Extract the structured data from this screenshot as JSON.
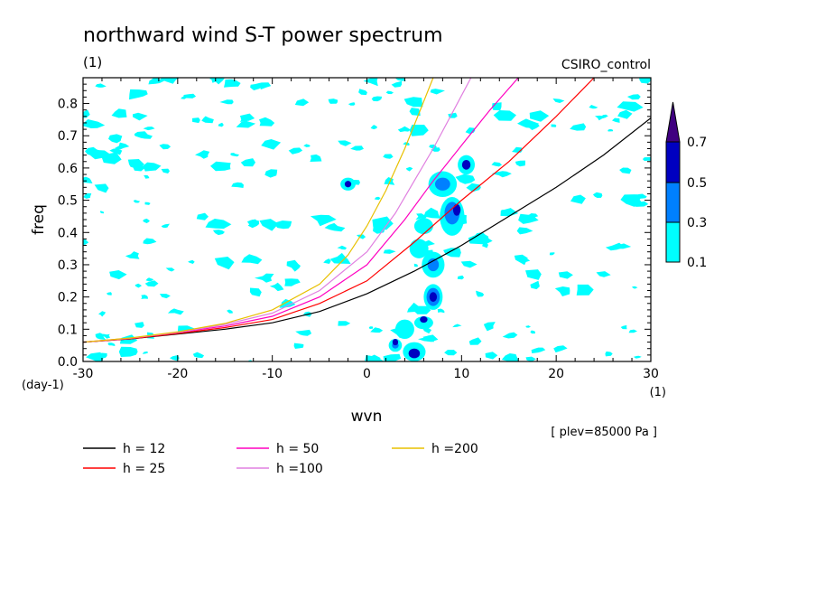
{
  "chart_data": {
    "type": "heatmap",
    "title": "northward wind S-T power spectrum",
    "subtitle_left": "(1)",
    "subtitle_right": "CSIRO_control",
    "xlabel": "wvn",
    "ylabel": "freq",
    "x_unit_label": "(1)",
    "y_unit_label": "(day-1)",
    "annotation": "[ plev=85000 Pa ]",
    "xlim": [
      -30,
      30
    ],
    "ylim": [
      0,
      0.88
    ],
    "x_ticks": [
      -30,
      -20,
      -10,
      0,
      10,
      20,
      30
    ],
    "x_tick_labels": [
      "-30",
      "-20",
      "-10",
      "0",
      "10",
      "20",
      "30"
    ],
    "y_ticks": [
      0.0,
      0.1,
      0.2,
      0.3,
      0.4,
      0.5,
      0.6,
      0.7,
      0.8
    ],
    "y_tick_labels": [
      "0.0",
      "0.1",
      "0.2",
      "0.3",
      "0.4",
      "0.5",
      "0.6",
      "0.7",
      "0.8"
    ],
    "colorbar": {
      "levels": [
        0.1,
        0.3,
        0.5,
        0.7
      ],
      "level_labels": [
        "0.1",
        "0.3",
        "0.5",
        "0.7"
      ],
      "colors": [
        "#00ffff",
        "#0080ff",
        "#0000c0",
        "#400080"
      ]
    },
    "dispersion_curves": [
      {
        "label": "h = 12",
        "color": "#000000",
        "points": [
          [
            -30,
            0.06
          ],
          [
            -25,
            0.07
          ],
          [
            -20,
            0.085
          ],
          [
            -15,
            0.1
          ],
          [
            -10,
            0.12
          ],
          [
            -5,
            0.155
          ],
          [
            0,
            0.21
          ],
          [
            5,
            0.28
          ],
          [
            10,
            0.36
          ],
          [
            15,
            0.45
          ],
          [
            20,
            0.54
          ],
          [
            25,
            0.64
          ],
          [
            30,
            0.755
          ]
        ]
      },
      {
        "label": "h = 25",
        "color": "#ff0000",
        "points": [
          [
            -30,
            0.06
          ],
          [
            -25,
            0.07
          ],
          [
            -20,
            0.087
          ],
          [
            -15,
            0.105
          ],
          [
            -10,
            0.13
          ],
          [
            -5,
            0.18
          ],
          [
            0,
            0.25
          ],
          [
            5,
            0.37
          ],
          [
            10,
            0.5
          ],
          [
            15,
            0.62
          ],
          [
            20,
            0.76
          ],
          [
            24,
            0.88
          ]
        ]
      },
      {
        "label": "h = 50",
        "color": "#ff00c0",
        "points": [
          [
            -30,
            0.06
          ],
          [
            -25,
            0.072
          ],
          [
            -20,
            0.09
          ],
          [
            -15,
            0.11
          ],
          [
            -10,
            0.14
          ],
          [
            -5,
            0.2
          ],
          [
            0,
            0.3
          ],
          [
            4,
            0.44
          ],
          [
            7,
            0.56
          ],
          [
            10,
            0.67
          ],
          [
            13,
            0.78
          ],
          [
            16,
            0.88
          ]
        ]
      },
      {
        "label": "h =100",
        "color": "#e080e0",
        "points": [
          [
            -30,
            0.06
          ],
          [
            -25,
            0.072
          ],
          [
            -20,
            0.09
          ],
          [
            -15,
            0.115
          ],
          [
            -10,
            0.15
          ],
          [
            -5,
            0.22
          ],
          [
            0,
            0.34
          ],
          [
            3,
            0.46
          ],
          [
            5,
            0.56
          ],
          [
            7,
            0.66
          ],
          [
            9,
            0.77
          ],
          [
            11,
            0.88
          ]
        ]
      },
      {
        "label": "h =200",
        "color": "#e8c000",
        "points": [
          [
            -30,
            0.06
          ],
          [
            -25,
            0.073
          ],
          [
            -20,
            0.092
          ],
          [
            -15,
            0.118
          ],
          [
            -10,
            0.16
          ],
          [
            -5,
            0.24
          ],
          [
            -2,
            0.33
          ],
          [
            0,
            0.42
          ],
          [
            2,
            0.53
          ],
          [
            4,
            0.66
          ],
          [
            5.5,
            0.77
          ],
          [
            7,
            0.88
          ]
        ]
      }
    ],
    "contour_blobs": [
      {
        "x": 5,
        "y": 0.03,
        "rx": 1.2,
        "ry": 0.03,
        "level": 0
      },
      {
        "x": 5,
        "y": 0.025,
        "rx": 0.6,
        "ry": 0.015,
        "level": 2
      },
      {
        "x": 3,
        "y": 0.05,
        "rx": 0.7,
        "ry": 0.02,
        "level": 0
      },
      {
        "x": 3,
        "y": 0.05,
        "rx": 0.35,
        "ry": 0.01,
        "level": 1
      },
      {
        "x": 7,
        "y": 0.2,
        "rx": 1.0,
        "ry": 0.04,
        "level": 0
      },
      {
        "x": 7,
        "y": 0.2,
        "rx": 0.7,
        "ry": 0.028,
        "level": 1
      },
      {
        "x": 7,
        "y": 0.2,
        "rx": 0.4,
        "ry": 0.015,
        "level": 2
      },
      {
        "x": 7,
        "y": 0.3,
        "rx": 1.2,
        "ry": 0.04,
        "level": 0
      },
      {
        "x": 7,
        "y": 0.3,
        "rx": 0.6,
        "ry": 0.02,
        "level": 1
      },
      {
        "x": 5.5,
        "y": 0.35,
        "rx": 1.0,
        "ry": 0.03,
        "level": 0
      },
      {
        "x": 9,
        "y": 0.45,
        "rx": 1.3,
        "ry": 0.06,
        "level": 0
      },
      {
        "x": 9,
        "y": 0.46,
        "rx": 0.8,
        "ry": 0.035,
        "level": 1
      },
      {
        "x": 9.5,
        "y": 0.47,
        "rx": 0.4,
        "ry": 0.018,
        "level": 2
      },
      {
        "x": 8,
        "y": 0.55,
        "rx": 1.5,
        "ry": 0.04,
        "level": 0
      },
      {
        "x": 8,
        "y": 0.55,
        "rx": 0.8,
        "ry": 0.02,
        "level": 1
      },
      {
        "x": 10.5,
        "y": 0.61,
        "rx": 0.9,
        "ry": 0.03,
        "level": 0
      },
      {
        "x": 10.5,
        "y": 0.61,
        "rx": 0.45,
        "ry": 0.015,
        "level": 2
      },
      {
        "x": 6,
        "y": 0.42,
        "rx": 1.0,
        "ry": 0.025,
        "level": 0
      },
      {
        "x": -2,
        "y": 0.55,
        "rx": 0.8,
        "ry": 0.02,
        "level": 0
      },
      {
        "x": -2,
        "y": 0.55,
        "rx": 0.35,
        "ry": 0.01,
        "level": 2
      },
      {
        "x": 6,
        "y": 0.12,
        "rx": 1.0,
        "ry": 0.02,
        "level": 0
      },
      {
        "x": 6,
        "y": 0.13,
        "rx": 0.4,
        "ry": 0.01,
        "level": 2
      },
      {
        "x": 4,
        "y": 0.1,
        "rx": 1.0,
        "ry": 0.03,
        "level": 0
      },
      {
        "x": 3,
        "y": 0.06,
        "rx": 0.3,
        "ry": 0.01,
        "level": 2
      }
    ]
  }
}
